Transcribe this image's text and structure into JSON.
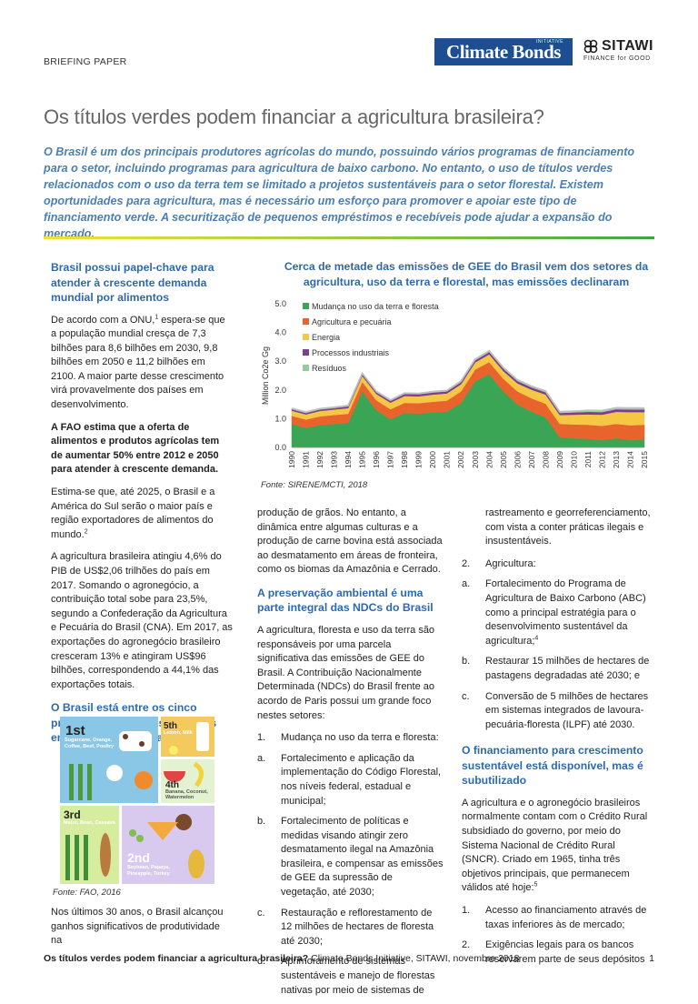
{
  "header": {
    "label": "BRIEFING PAPER",
    "logo_climate": "Climate Bonds",
    "logo_climate_tag": "INITIATIVE",
    "logo_sitawi": "SITAWI",
    "logo_sitawi_sub": "FINANCE for GOOD"
  },
  "title": "Os títulos verdes podem financiar a agricultura brasileira?",
  "intro": "O Brasil é um dos principais produtores agrícolas do mundo, possuindo vários programas de financiamento para o setor, incluindo programas para agricultura de baixo carbono. No entanto, o uso de títulos verdes relacionados com o uso da terra tem se limitado a projetos sustentáveis para o setor florestal. Existem oportunidades para agricultura, mas é necessário um esforço para promover e apoiar este tipo de financiamento verde. A securitização de pequenos empréstimos e recebíveis pode ajudar a expansão do mercado.",
  "col1": {
    "h1": "Brasil possui papel-chave para atender à crescente demanda mundial por alimentos",
    "p1_a": "De acordo com a ONU,",
    "p1_sup": "1",
    "p1_b": " espera-se que a população mundial cresça de 7,3 bilhões para 8,6 bilhões em 2030, 9,8 bilhões em 2050 e 11,2 bilhões em 2100. A maior parte desse crescimento virá provavelmente dos países em desenvolvimento.",
    "p2": "A FAO estima que a oferta de alimentos e produtos agrícolas tem de aumentar 50% entre 2012 e 2050 para atender à crescente demanda.",
    "p3_a": "Estima-se que, até 2025, o Brasil e a América do Sul serão o maior país e região exportadores de alimentos do mundo.",
    "p3_sup": "2",
    "p4": "A agricultura brasileira atingiu 4,6% do PIB de US$2,06 trilhões do país em 2017. Somando o agronegócio, a contribuição total sobe para 23,5%, segundo a Confederação da Agricultura e Pecuária do Brasil (CNA). Em 2017, as exportações do agronegócio brasileiro cresceram 13% e atingiram US$96 bilhões, correspondendo a 44,1% das exportações totais.",
    "h2": "O Brasil está entre os cinco principais produtores mundiais em vários produtos agrícolas",
    "fao": {
      "r1": "1st",
      "r1_items": "Sugarcane, Orange, Coffee, Beef, Poultry",
      "r5": "5th",
      "r5_items": "Lemon, Milk",
      "r4": "4th",
      "r4_items": "Banana, Coconut, Watermelon",
      "r3": "3rd",
      "r3_items": "Maize, Bean, Cassava",
      "r2": "2nd",
      "r2_items": "Soybean, Papaya, Pineapple, Turkey"
    },
    "fonte": "Fonte: FAO, 2016",
    "p5": "Nos últimos 30 anos, o Brasil alcançou ganhos significativos de produtividade na"
  },
  "chart_title": "Cerca de metade das emissões de GEE do Brasil vem dos setores da agricultura, uso da terra e florestal, mas emissões declinaram",
  "chart_fonte": "Fonte: SIRENE/MCTI, 2018",
  "chart_data": {
    "type": "area",
    "stacked": true,
    "ylabel": "Million Co2e Gg",
    "ylim": [
      0,
      5.0
    ],
    "yticks": [
      "0.0",
      "1.0",
      "2.0",
      "3.0",
      "4.0",
      "5.0"
    ],
    "legend_position": "top-left",
    "x": [
      "1990",
      "1991",
      "1992",
      "1993",
      "1994",
      "1995",
      "1996",
      "1997",
      "1998",
      "1999",
      "2000",
      "2001",
      "2002",
      "2003",
      "2004",
      "2005",
      "2006",
      "2007",
      "2008",
      "2009",
      "2010",
      "2011",
      "2012",
      "2013",
      "2014",
      "2015"
    ],
    "series": [
      {
        "name": "Mudança no uso da terra e floresta",
        "color": "#3aa655",
        "values": [
          0.82,
          0.68,
          0.78,
          0.82,
          0.85,
          1.95,
          1.3,
          0.98,
          1.2,
          1.18,
          1.22,
          1.25,
          1.55,
          2.3,
          2.55,
          1.95,
          1.5,
          1.25,
          1.05,
          0.35,
          0.32,
          0.3,
          0.25,
          0.32,
          0.25,
          0.28
        ]
      },
      {
        "name": "Agricultura e pecuária",
        "color": "#e8642c",
        "values": [
          0.28,
          0.29,
          0.3,
          0.31,
          0.32,
          0.33,
          0.34,
          0.35,
          0.35,
          0.36,
          0.37,
          0.38,
          0.4,
          0.41,
          0.42,
          0.44,
          0.45,
          0.46,
          0.47,
          0.47,
          0.48,
          0.49,
          0.5,
          0.5,
          0.52,
          0.51
        ]
      },
      {
        "name": "Energia",
        "color": "#f6c744",
        "values": [
          0.18,
          0.18,
          0.19,
          0.19,
          0.2,
          0.21,
          0.22,
          0.23,
          0.24,
          0.24,
          0.25,
          0.25,
          0.25,
          0.25,
          0.27,
          0.27,
          0.28,
          0.3,
          0.32,
          0.31,
          0.34,
          0.36,
          0.39,
          0.42,
          0.46,
          0.44
        ]
      },
      {
        "name": "Processos industriais",
        "color": "#7b3f91",
        "values": [
          0.05,
          0.05,
          0.05,
          0.05,
          0.06,
          0.06,
          0.06,
          0.06,
          0.07,
          0.07,
          0.07,
          0.07,
          0.07,
          0.07,
          0.08,
          0.08,
          0.08,
          0.08,
          0.08,
          0.07,
          0.08,
          0.09,
          0.09,
          0.09,
          0.09,
          0.09
        ]
      },
      {
        "name": "Resíduos",
        "color": "#8fcf9a",
        "values": [
          0.03,
          0.03,
          0.03,
          0.03,
          0.03,
          0.03,
          0.03,
          0.03,
          0.03,
          0.03,
          0.03,
          0.03,
          0.04,
          0.04,
          0.04,
          0.04,
          0.04,
          0.04,
          0.04,
          0.04,
          0.04,
          0.05,
          0.05,
          0.05,
          0.05,
          0.05
        ]
      }
    ]
  },
  "col2": {
    "p1": "produção de grãos. No entanto, a dinâmica entre algumas culturas e a produção de carne bovina está associada ao desmatamento em áreas de fronteira, como os biomas da Amazônia e Cerrado.",
    "h1": "A preservação ambiental é uma parte integral das NDCs do Brasil",
    "p2": " A agricultura, floresta e uso da terra são responsáveis por uma parcela significativa das emissões de GEE do Brasil. A Contribuição Nacionalmente Determinada (NDCs) do Brasil frente ao acordo de Paris possui um grande foco nestes setores:",
    "n1_mark": "1.",
    "n1": "Mudança no uso da terra e floresta:",
    "a_mark": "a.",
    "a": "Fortalecimento e aplicação da implementação do Código Florestal, nos níveis federal, estadual e municipal;",
    "b_mark": "b.",
    "b": "Fortalecimento de políticas e medidas visando atingir zero desmatamento ilegal na Amazônia brasileira, e compensar as emissões de GEE da supressão de vegetação, até 2030;",
    "c_mark": "c.",
    "c": "Restauração e reflorestamento de 12 milhões de hectares de floresta até 2030;",
    "d_mark": "d.",
    "d": "Aprimoramento de sistemas sustentáveis e manejo de florestas nativas por meio de sistemas de"
  },
  "col3": {
    "p1": "rastreamento e georreferenciamento, com vista a conter práticas ilegais e insustentáveis.",
    "n2_mark": "2.",
    "n2": "Agricultura:",
    "a_mark": "a.",
    "a": "Fortalecimento do Programa de Agricultura de Baixo Carbono (ABC) como a principal estratégia para o desenvolvimento sustentável da agricultura;",
    "a_sup": "4",
    "b_mark": "b.",
    "b": "Restaurar 15 milhões de hectares de pastagens degradadas até 2030; e",
    "c_mark": "c.",
    "c": "Conversão de 5 milhões de hectares em sistemas integrados de lavoura-pecuária-floresta (ILPF) até 2030.",
    "h1": "O financiamento para crescimento sustentável está disponível, mas é subutilizado",
    "p2": "A agricultura e o agronegócio brasileiros normalmente contam com o Crédito Rural subsidiado do governo, por meio do Sistema Nacional de Crédito Rural (SNCR). Criado em 1965, tinha três objetivos principais, que permanecem válidos até hoje:",
    "p2_sup": "5",
    "m1_mark": "1.",
    "m1": "Acesso ao financiamento através de taxas inferiores às de mercado;",
    "m2_mark": "2.",
    "m2": "Exigências legais para os bancos reservarem parte de seus depósitos"
  },
  "footer": {
    "title": "Os títulos verdes podem financiar a agricultura brasileira?",
    "rest": " Climate Bonds Initiative, SITAWI, novembro 2018",
    "page": "1"
  }
}
